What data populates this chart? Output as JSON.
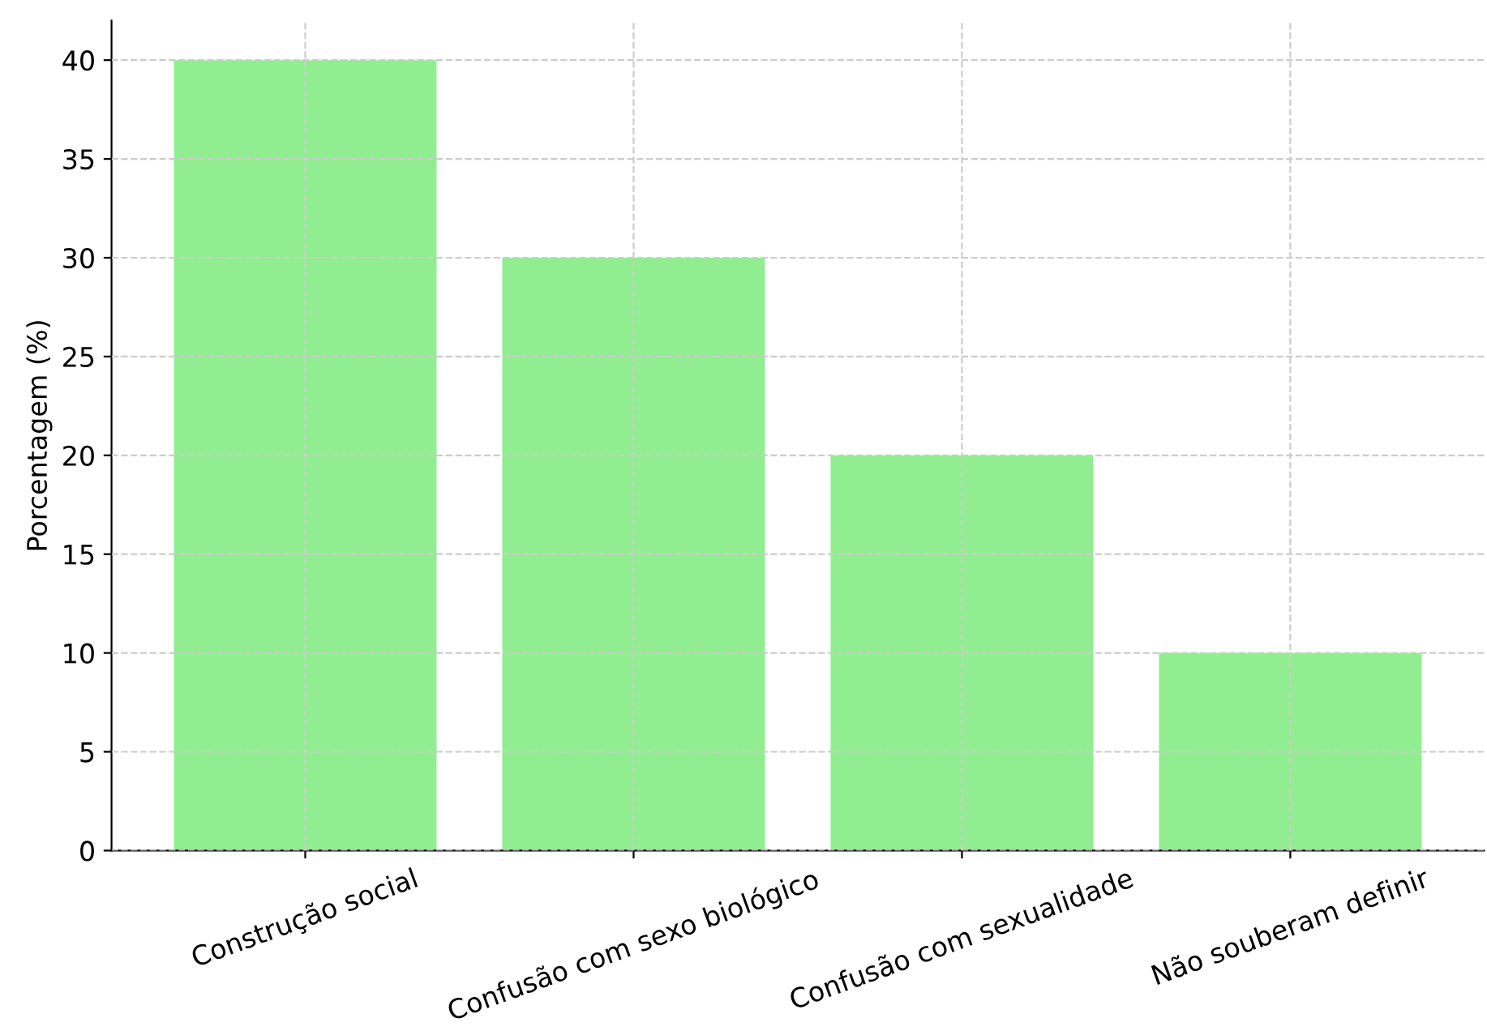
{
  "chart_data": {
    "type": "bar",
    "ylabel": "Porcentagem (%)",
    "categories": [
      "Construção social",
      "Confusão com sexo biológico",
      "Confusão com sexualidade",
      "Não souberam definir"
    ],
    "values": [
      40,
      30,
      20,
      10
    ],
    "color": "#90ee90",
    "ylim": [
      0,
      42
    ],
    "yticks": [
      0,
      5,
      10,
      15,
      20,
      25,
      30,
      35,
      40
    ],
    "grid": true
  }
}
